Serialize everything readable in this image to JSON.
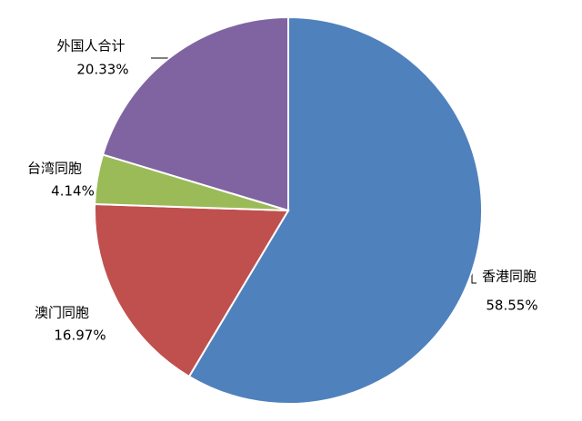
{
  "chart_data": {
    "type": "pie",
    "categories": [
      "香港同胞",
      "澳门同胞",
      "台湾同胞",
      "外国人合计"
    ],
    "values": [
      58.55,
      16.97,
      4.14,
      20.33
    ],
    "value_labels": [
      "58.55%",
      "16.97%",
      "4.14%",
      "20.33%"
    ],
    "colors": [
      "#4f81bd",
      "#c0504d",
      "#9bbb59",
      "#8064a2"
    ]
  }
}
